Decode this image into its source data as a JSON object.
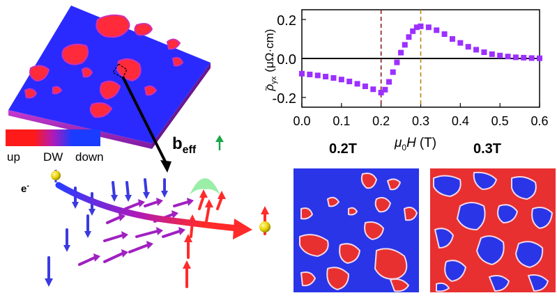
{
  "legend_bar": {
    "labels": [
      "up",
      "DW",
      "down"
    ],
    "colors": [
      "#ff1a1a",
      "#b01ab8",
      "#1a3cff"
    ]
  },
  "labels": {
    "b_eff_main": "b",
    "b_eff_sub": "eff",
    "electron_main": "e",
    "electron_sup": "-",
    "field_02": "0.2T",
    "field_03": "0.3T"
  },
  "colors": {
    "up": "#ff1a1a",
    "dw": "#b01ab8",
    "down": "#1a3cff",
    "data": "#9b30ff",
    "marker_02": "#8b1a1a",
    "marker_03": "#b8860b",
    "arrow_green": "#1aa64a"
  },
  "chart_data": {
    "type": "scatter",
    "title": "",
    "xlabel_mu": "μ",
    "xlabel_sub": "0",
    "xlabel_var": "H",
    "xlabel_unit": "(T)",
    "ylabel_tilde": "~",
    "ylabel_rho": "ρ",
    "ylabel_sub": "yx",
    "ylabel_unit": "(μΩ·cm)",
    "xlim": [
      0.0,
      0.6
    ],
    "ylim": [
      -0.25,
      0.25
    ],
    "xticks": [
      "0.0",
      "0.1",
      "0.2",
      "0.3",
      "0.4",
      "0.5",
      "0.6"
    ],
    "yticks": [
      "0.2",
      "0.0",
      "-0.2"
    ],
    "xtick_values": [
      0.0,
      0.1,
      0.2,
      0.3,
      0.4,
      0.5,
      0.6
    ],
    "ytick_values": [
      0.2,
      0.0,
      -0.2
    ],
    "vlines": [
      0.2,
      0.3
    ],
    "hline": 0.0,
    "grid": false,
    "series": [
      {
        "x": [
          0.0,
          0.02,
          0.04,
          0.06,
          0.08,
          0.1,
          0.12,
          0.14,
          0.16,
          0.18,
          0.2,
          0.21,
          0.22,
          0.23,
          0.24,
          0.25,
          0.26,
          0.27,
          0.28,
          0.29,
          0.3,
          0.32,
          0.34,
          0.36,
          0.38,
          0.4,
          0.42,
          0.44,
          0.46,
          0.48,
          0.5,
          0.52,
          0.54,
          0.56,
          0.58,
          0.6
        ],
        "values": [
          -0.078,
          -0.082,
          -0.087,
          -0.093,
          -0.1,
          -0.108,
          -0.118,
          -0.13,
          -0.143,
          -0.158,
          -0.175,
          -0.16,
          -0.12,
          -0.07,
          -0.02,
          0.03,
          0.07,
          0.11,
          0.14,
          0.16,
          0.165,
          0.16,
          0.145,
          0.125,
          0.1,
          0.08,
          0.06,
          0.045,
          0.032,
          0.022,
          0.015,
          0.01,
          0.006,
          0.004,
          0.002,
          0.001
        ]
      }
    ]
  }
}
